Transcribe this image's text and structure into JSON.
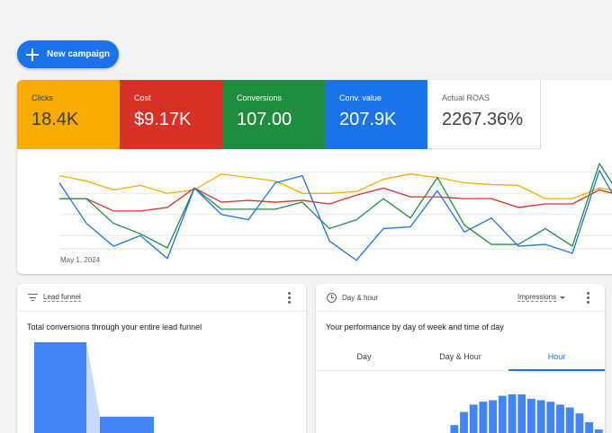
{
  "toolbar": {
    "new_campaign_label": "New campaign"
  },
  "metrics": [
    {
      "label": "Clicks",
      "value": "18.4K",
      "color": "#f9ab00"
    },
    {
      "label": "Cost",
      "value": "$9.17K",
      "color": "#d93025"
    },
    {
      "label": "Conversions",
      "value": "107.00",
      "color": "#1e8e3e"
    },
    {
      "label": "Conv. value",
      "value": "207.9K",
      "color": "#1a73e8"
    },
    {
      "label": "Actual ROAS",
      "value": "2267.36%",
      "color": "#ffffff"
    }
  ],
  "chart_data": {
    "type": "line",
    "x_start_label": "May 1, 2024",
    "ylim": [
      0,
      100
    ],
    "grid": true,
    "series": [
      {
        "color": "#f9ab00",
        "values": [
          82,
          76,
          66,
          71,
          62,
          66,
          84,
          80,
          76,
          62,
          62,
          64,
          78,
          84,
          80,
          74,
          72,
          71,
          56,
          56,
          68,
          64,
          56
        ]
      },
      {
        "color": "#d93025",
        "values": [
          56,
          56,
          42,
          42,
          46,
          68,
          52,
          54,
          52,
          54,
          50,
          60,
          68,
          58,
          58,
          56,
          56,
          46,
          50,
          50,
          66,
          58,
          52
        ]
      },
      {
        "color": "#1e8e3e",
        "values": [
          56,
          56,
          28,
          16,
          0,
          68,
          44,
          44,
          44,
          52,
          22,
          32,
          56,
          34,
          80,
          26,
          4,
          4,
          22,
          2,
          96,
          48,
          60
        ]
      },
      {
        "color": "#1a73e8",
        "values": [
          74,
          28,
          2,
          14,
          -12,
          68,
          38,
          32,
          74,
          82,
          8,
          -14,
          22,
          24,
          65,
          18,
          34,
          2,
          4,
          -6,
          88,
          34,
          24
        ]
      }
    ]
  },
  "funnel_card": {
    "title": "Lead funnel",
    "subtitle": "Total conversions through your entire lead funnel",
    "bars": [
      100,
      28
    ]
  },
  "dayhour_card": {
    "title": "Day & hour",
    "metric_select": "Impressions",
    "subtitle": "Your performance by day of week and time of day",
    "tabs": [
      {
        "label": "Day"
      },
      {
        "label": "Day & Hour"
      },
      {
        "label": "Hour"
      }
    ],
    "hour_bars": [
      4,
      0,
      0,
      0,
      0,
      0,
      0,
      0,
      0,
      0,
      0,
      12,
      28,
      46,
      56,
      60,
      62,
      68,
      70,
      70,
      64,
      62,
      60,
      56,
      52,
      44,
      32,
      22
    ]
  },
  "colors": {
    "accent": "#1a73e8",
    "bar": "#4285f4",
    "funnel_connector": "#c6dafc"
  }
}
